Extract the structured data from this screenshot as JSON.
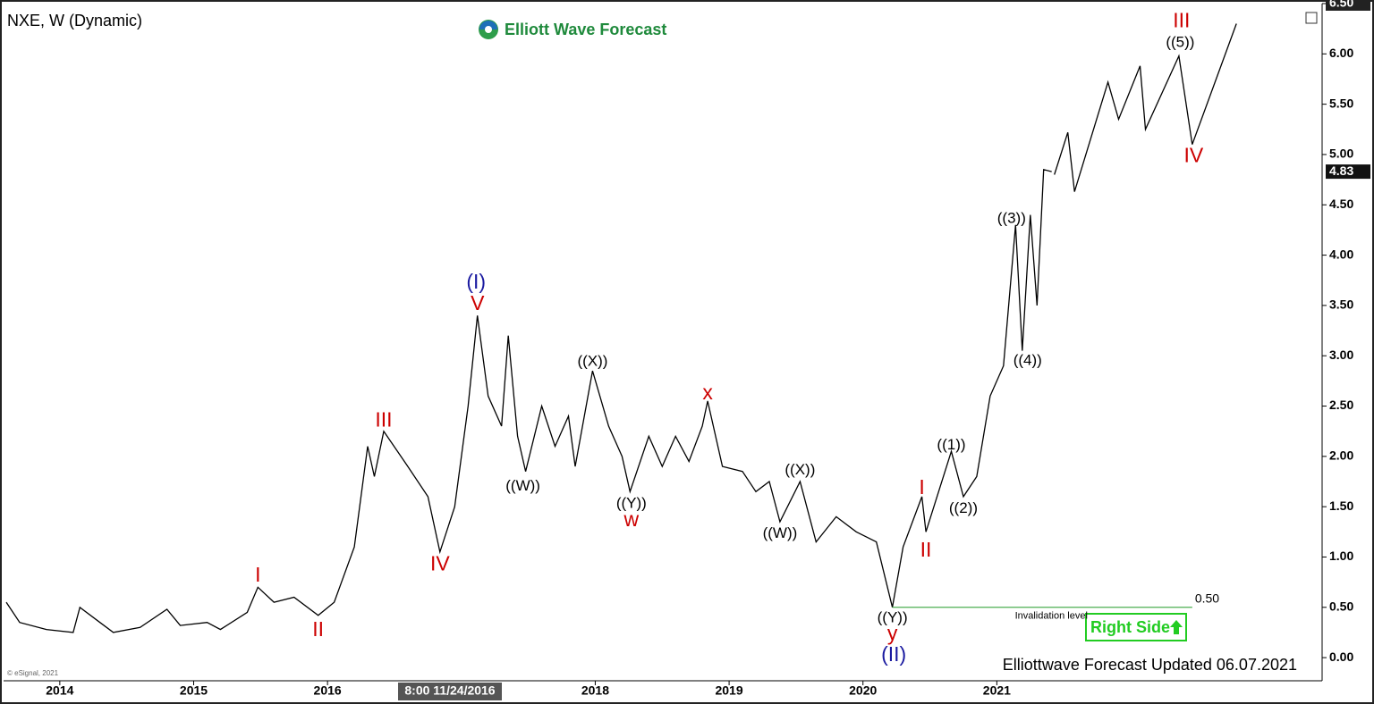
{
  "chart_data": {
    "type": "line",
    "title": "NXE, W (Dynamic)",
    "brand": "Elliott Wave Forecast",
    "footer": "Elliottwave Forecast Updated 06.07.2021",
    "copyright": "© eSignal, 2021",
    "crosshair_label": "8:00 11/24/2016",
    "badge": "Right Side",
    "xlim": [
      2013.58,
      2023.43
    ],
    "xticks": [
      2014,
      2015,
      2016,
      2018,
      2019,
      2020,
      2021
    ],
    "ylim": [
      -0.23,
      6.5
    ],
    "yticks": [
      {
        "value": 0,
        "label": "0.00"
      },
      {
        "value": 0.5,
        "label": "0.50"
      },
      {
        "value": 1,
        "label": "1.00"
      },
      {
        "value": 1.5,
        "label": "1.50"
      },
      {
        "value": 2,
        "label": "2.00"
      },
      {
        "value": 2.5,
        "label": "2.50"
      },
      {
        "value": 3,
        "label": "3.00"
      },
      {
        "value": 3.5,
        "label": "3.50"
      },
      {
        "value": 4,
        "label": "4.00"
      },
      {
        "value": 4.5,
        "label": "4.50"
      },
      {
        "value": 5,
        "label": "5.00"
      },
      {
        "value": 5.5,
        "label": "5.50"
      },
      {
        "value": 6,
        "label": "6.00"
      },
      {
        "value": 6.5,
        "label": "6.50"
      }
    ],
    "last_price": {
      "value": 4.83,
      "label": "4.83"
    },
    "series": [
      {
        "name": "NXE",
        "color": "#000000",
        "x": [
          2013.6,
          2013.7,
          2013.9,
          2014.1,
          2014.15,
          2014.3,
          2014.4,
          2014.6,
          2014.8,
          2014.9,
          2015.1,
          2015.2,
          2015.4,
          2015.48,
          2015.6,
          2015.75,
          2015.93,
          2016.05,
          2016.2,
          2016.3,
          2016.35,
          2016.42,
          2016.6,
          2016.75,
          2016.84,
          2016.95,
          2017.05,
          2017.12,
          2017.2,
          2017.3,
          2017.35,
          2017.42,
          2017.48,
          2017.6,
          2017.7,
          2017.8,
          2017.85,
          2017.98,
          2018.1,
          2018.2,
          2018.26,
          2018.4,
          2018.5,
          2018.6,
          2018.7,
          2018.8,
          2018.84,
          2018.95,
          2019.1,
          2019.2,
          2019.3,
          2019.38,
          2019.53,
          2019.65,
          2019.8,
          2019.95,
          2020.1,
          2020.22,
          2020.3,
          2020.44,
          2020.47,
          2020.66,
          2020.75,
          2020.85,
          2020.95,
          2021.05,
          2021.14,
          2021.19,
          2021.25,
          2021.3,
          2021.35,
          2021.41
        ],
        "values": [
          0.55,
          0.35,
          0.28,
          0.25,
          0.5,
          0.35,
          0.25,
          0.3,
          0.48,
          0.32,
          0.35,
          0.28,
          0.45,
          0.7,
          0.55,
          0.6,
          0.42,
          0.55,
          1.1,
          2.1,
          1.8,
          2.25,
          1.9,
          1.6,
          1.05,
          1.5,
          2.5,
          3.4,
          2.6,
          2.3,
          3.2,
          2.2,
          1.85,
          2.5,
          2.1,
          2.4,
          1.9,
          2.85,
          2.3,
          2.0,
          1.65,
          2.2,
          1.9,
          2.2,
          1.95,
          2.3,
          2.55,
          1.9,
          1.85,
          1.65,
          1.75,
          1.35,
          1.75,
          1.15,
          1.4,
          1.25,
          1.15,
          0.5,
          1.1,
          1.6,
          1.25,
          2.05,
          1.6,
          1.8,
          2.6,
          2.9,
          4.3,
          3.05,
          4.4,
          3.5,
          4.85,
          4.83
        ]
      },
      {
        "name": "Projection",
        "color": "#000000",
        "x": [
          2021.43,
          2021.53,
          2021.58,
          2021.83,
          2021.91,
          2022.07,
          2022.11,
          2022.36,
          2022.46,
          2022.79
        ],
        "values": [
          4.8,
          5.22,
          4.63,
          5.72,
          5.35,
          5.88,
          5.25,
          5.98,
          5.1,
          6.3
        ]
      }
    ],
    "invalidation": {
      "value": 0.5,
      "label": "0.50",
      "text": "Invalidation level",
      "x": [
        2020.22,
        2022.46
      ],
      "color": "#4caf50"
    },
    "annotations": [
      {
        "text": "I",
        "x": 2015.48,
        "y": 0.81,
        "color": "#cc0000"
      },
      {
        "text": "II",
        "x": 2015.93,
        "y": 0.27,
        "color": "#cc0000"
      },
      {
        "text": "III",
        "x": 2016.42,
        "y": 2.35,
        "color": "#cc0000"
      },
      {
        "text": "IV",
        "x": 2016.84,
        "y": 0.92,
        "color": "#cc0000"
      },
      {
        "text": "V",
        "x": 2017.12,
        "y": 3.51,
        "color": "#cc0000"
      },
      {
        "text": "(I)",
        "x": 2017.11,
        "y": 3.72,
        "color": "#1a1aa0"
      },
      {
        "text": "((W))",
        "x": 2017.46,
        "y": 1.7,
        "color": "#000000"
      },
      {
        "text": "((X))",
        "x": 2017.98,
        "y": 2.94,
        "color": "#000000"
      },
      {
        "text": "((Y))",
        "x": 2018.27,
        "y": 1.53,
        "color": "#000000"
      },
      {
        "text": "w",
        "x": 2018.27,
        "y": 1.36,
        "color": "#cc0000"
      },
      {
        "text": "x",
        "x": 2018.84,
        "y": 2.62,
        "color": "#cc0000"
      },
      {
        "text": "((W))",
        "x": 2019.38,
        "y": 1.23,
        "color": "#000000"
      },
      {
        "text": "((X))",
        "x": 2019.53,
        "y": 1.86,
        "color": "#000000"
      },
      {
        "text": "((Y))",
        "x": 2020.22,
        "y": 0.39,
        "color": "#000000"
      },
      {
        "text": "y",
        "x": 2020.22,
        "y": 0.23,
        "color": "#cc0000"
      },
      {
        "text": "(II)",
        "x": 2020.23,
        "y": 0.02,
        "color": "#1a1aa0"
      },
      {
        "text": "I",
        "x": 2020.44,
        "y": 1.68,
        "color": "#cc0000"
      },
      {
        "text": "II",
        "x": 2020.47,
        "y": 1.06,
        "color": "#cc0000"
      },
      {
        "text": "((1))",
        "x": 2020.66,
        "y": 2.11,
        "color": "#000000"
      },
      {
        "text": "((2))",
        "x": 2020.75,
        "y": 1.48,
        "color": "#000000"
      },
      {
        "text": "((3))",
        "x": 2021.11,
        "y": 4.36,
        "color": "#000000"
      },
      {
        "text": "((4))",
        "x": 2021.23,
        "y": 2.95,
        "color": "#000000"
      },
      {
        "text": "III",
        "x": 2022.38,
        "y": 6.32,
        "color": "#cc0000"
      },
      {
        "text": "((5))",
        "x": 2022.37,
        "y": 6.11,
        "color": "#000000"
      },
      {
        "text": "IV",
        "x": 2022.47,
        "y": 4.98,
        "color": "#cc0000"
      }
    ]
  }
}
